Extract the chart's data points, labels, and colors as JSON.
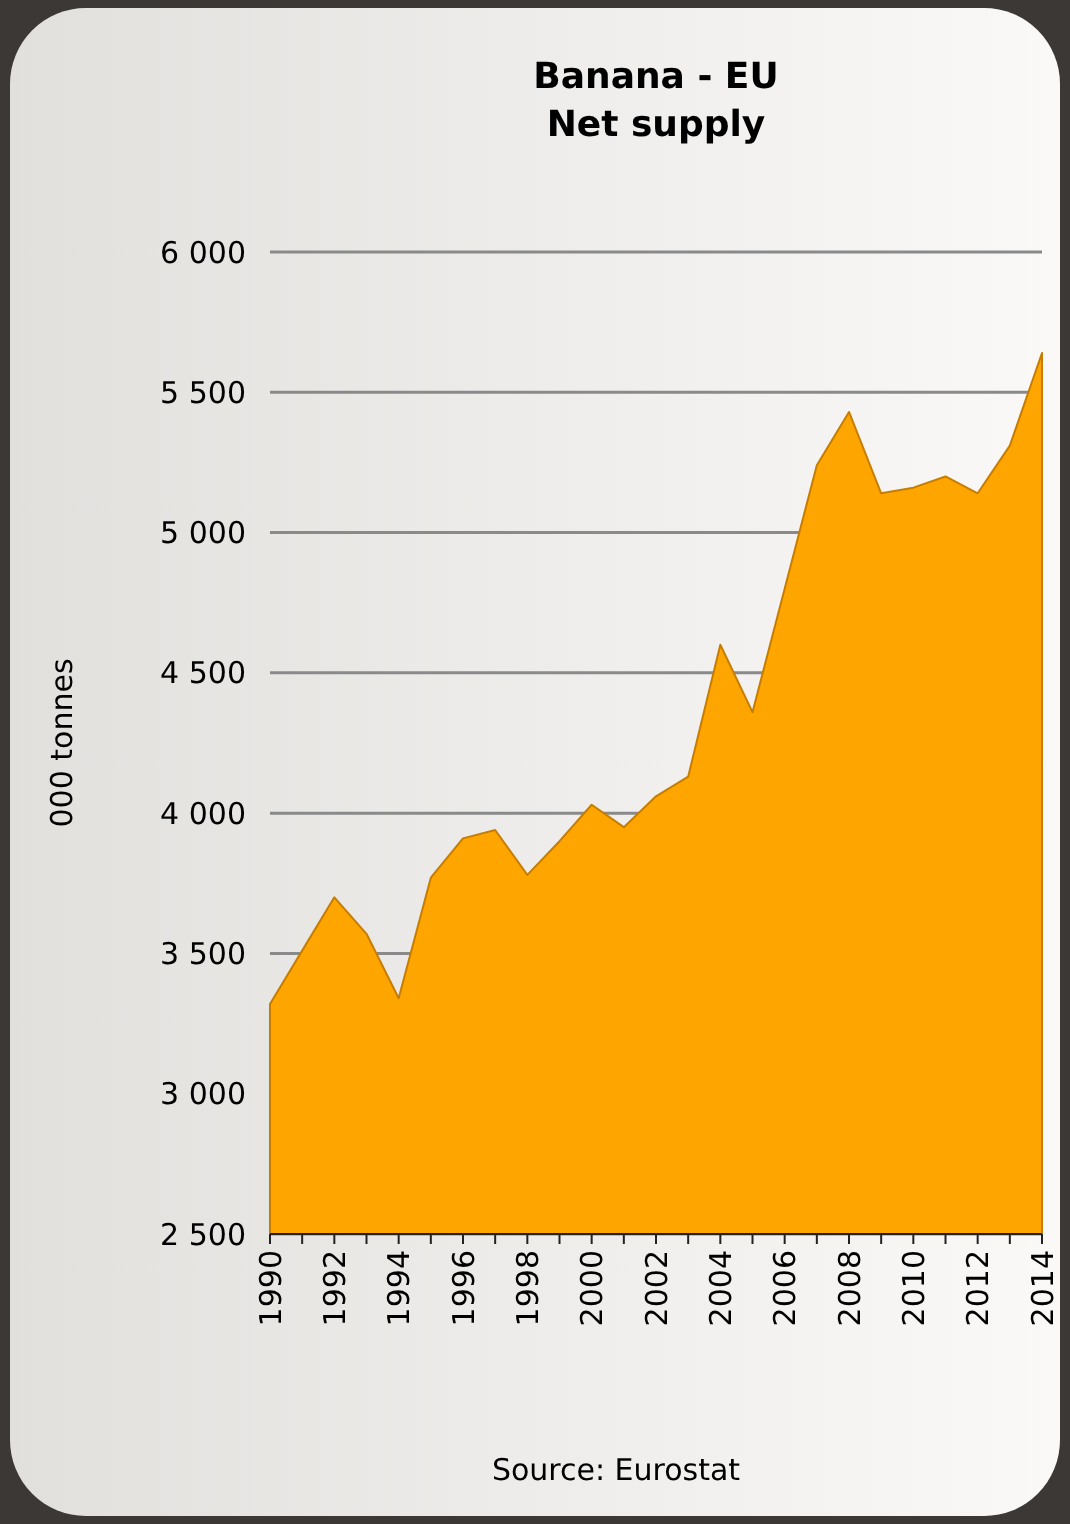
{
  "chart_data": {
    "type": "area",
    "title": "Banana - EU\nNet supply",
    "ylabel": "000 tonnes",
    "annotations": [
      "Source: Eurostat"
    ],
    "x": [
      1990,
      1991,
      1992,
      1993,
      1994,
      1995,
      1996,
      1997,
      1998,
      1999,
      2000,
      2001,
      2002,
      2003,
      2004,
      2005,
      2006,
      2007,
      2008,
      2009,
      2010,
      2011,
      2012,
      2013,
      2014
    ],
    "series": [
      {
        "color": "#ffa500",
        "values": [
          3320,
          3510,
          3700,
          3570,
          3340,
          3770,
          3910,
          3940,
          3780,
          3900,
          4030,
          3950,
          4060,
          4130,
          4600,
          4360,
          4800,
          5240,
          5430,
          5140,
          5160,
          5200,
          5140,
          5310,
          5640
        ]
      }
    ],
    "xlim": [
      1990,
      2014
    ],
    "xticks": [
      1990,
      {
        "value": 1991,
        "label": null
      },
      1992,
      {
        "value": 1993,
        "label": null
      },
      1994,
      {
        "value": 1995,
        "label": null
      },
      1996,
      {
        "value": 1997,
        "label": null
      },
      1998,
      {
        "value": 1999,
        "label": null
      },
      2000,
      {
        "value": 2001,
        "label": null
      },
      2002,
      {
        "value": 2003,
        "label": null
      },
      2004,
      {
        "value": 2005,
        "label": null
      },
      2006,
      {
        "value": 2007,
        "label": null
      },
      2008,
      {
        "value": 2009,
        "label": null
      },
      2010,
      {
        "value": 2011,
        "label": null
      },
      2012,
      {
        "value": 2013,
        "label": null
      },
      2014
    ],
    "ylim": [
      2500,
      6000
    ],
    "yticks": [
      {
        "value": 2500,
        "label": "2 500"
      },
      {
        "value": 3000,
        "label": "3 000"
      },
      {
        "value": 3500,
        "label": "3 500"
      },
      {
        "value": 4000,
        "label": "4 000"
      },
      {
        "value": 4500,
        "label": "4 500"
      },
      {
        "value": 5000,
        "label": "5 000"
      },
      {
        "value": 5500,
        "label": "5 500"
      },
      {
        "value": 6000,
        "label": "6 000"
      }
    ],
    "grid": "y"
  }
}
